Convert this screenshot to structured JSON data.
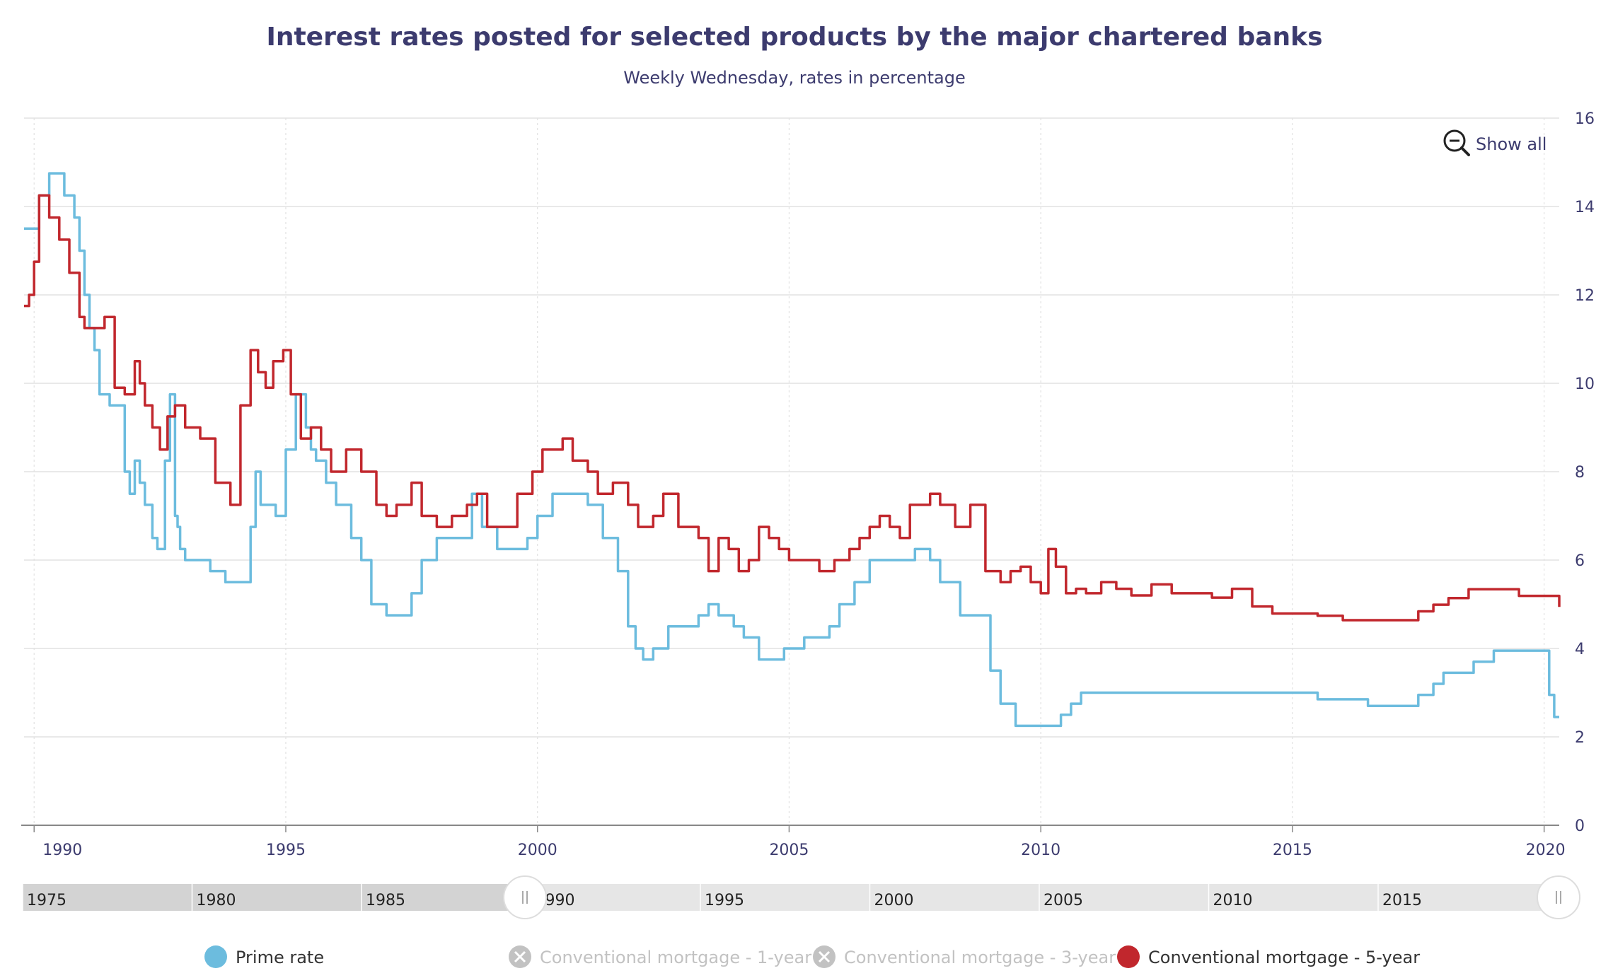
{
  "chart_data": {
    "type": "line",
    "title": "Interest rates posted for selected products by the major chartered banks",
    "subtitle": "Weekly Wednesday, rates in percentage",
    "xlabel": "",
    "ylabel": "",
    "ylim": [
      0,
      16
    ],
    "yticks": [
      "0",
      "2",
      "4",
      "6",
      "8",
      "10",
      "12",
      "14",
      "16"
    ],
    "xlim": [
      1989.8,
      2020.3
    ],
    "xticks": [
      "1990",
      "1995",
      "2000",
      "2005",
      "2010",
      "2015",
      "2020"
    ],
    "grid": true,
    "y_axis_position": "right",
    "legend_placement": "bottom",
    "series": [
      {
        "name": "Prime rate",
        "color": "#6cbcde",
        "visible": true,
        "x": [
          1989.8,
          1990.0,
          1990.1,
          1990.3,
          1990.6,
          1990.8,
          1990.9,
          1991.0,
          1991.1,
          1991.2,
          1991.3,
          1991.4,
          1991.5,
          1991.8,
          1991.9,
          1992.0,
          1992.1,
          1992.2,
          1992.35,
          1992.45,
          1992.6,
          1992.7,
          1992.8,
          1992.85,
          1992.9,
          1993.0,
          1993.2,
          1993.5,
          1993.8,
          1994.1,
          1994.3,
          1994.4,
          1994.5,
          1994.8,
          1995.0,
          1995.2,
          1995.4,
          1995.5,
          1995.6,
          1995.8,
          1996.0,
          1996.3,
          1996.5,
          1996.7,
          1997.0,
          1997.2,
          1997.4,
          1997.5,
          1997.7,
          1998.0,
          1998.5,
          1998.7,
          1998.9,
          1999.2,
          1999.5,
          1999.8,
          2000.0,
          2000.3,
          2000.6,
          2001.0,
          2001.3,
          2001.6,
          2001.8,
          2001.95,
          2002.1,
          2002.3,
          2002.6,
          2002.9,
          2003.2,
          2003.4,
          2003.6,
          2003.9,
          2004.1,
          2004.4,
          2004.7,
          2004.9,
          2005.3,
          2005.6,
          2005.8,
          2006.0,
          2006.3,
          2006.6,
          2006.9,
          2007.2,
          2007.5,
          2007.8,
          2008.0,
          2008.4,
          2008.8,
          2009.0,
          2009.2,
          2009.5,
          2009.8,
          2010.2,
          2010.4,
          2010.6,
          2010.8,
          2011.5,
          2012.5,
          2014.0,
          2015.0,
          2015.5,
          2016.0,
          2016.5,
          2017.0,
          2017.5,
          2017.8,
          2018.0,
          2018.3,
          2018.6,
          2019.0,
          2019.5,
          2020.0,
          2020.1,
          2020.2,
          2020.3
        ],
        "y": [
          13.5,
          13.5,
          14.25,
          14.75,
          14.25,
          13.75,
          13.0,
          12.0,
          11.25,
          10.75,
          9.75,
          9.75,
          9.5,
          8.0,
          7.5,
          8.25,
          7.75,
          7.25,
          6.5,
          6.25,
          8.25,
          9.75,
          7.0,
          6.75,
          6.25,
          6.0,
          6.0,
          5.75,
          5.5,
          5.5,
          6.75,
          8.0,
          7.25,
          7.0,
          8.5,
          9.75,
          9.0,
          8.5,
          8.25,
          7.75,
          7.25,
          6.5,
          6.0,
          5.0,
          4.75,
          4.75,
          4.75,
          5.25,
          6.0,
          6.5,
          6.5,
          7.5,
          6.75,
          6.25,
          6.25,
          6.5,
          7.0,
          7.5,
          7.5,
          7.25,
          6.5,
          5.75,
          4.5,
          4.0,
          3.75,
          4.0,
          4.5,
          4.5,
          4.75,
          5.0,
          4.75,
          4.5,
          4.25,
          3.75,
          3.75,
          4.0,
          4.25,
          4.25,
          4.5,
          5.0,
          5.5,
          6.0,
          6.0,
          6.0,
          6.25,
          6.0,
          5.5,
          4.75,
          4.75,
          3.5,
          2.75,
          2.25,
          2.25,
          2.25,
          2.5,
          2.75,
          3.0,
          3.0,
          3.0,
          3.0,
          3.0,
          2.85,
          2.85,
          2.7,
          2.7,
          2.95,
          3.2,
          3.45,
          3.45,
          3.7,
          3.95,
          3.95,
          3.95,
          2.95,
          2.45,
          2.45
        ]
      },
      {
        "name": "Conventional mortgage - 1-year",
        "color": "#cccccc",
        "visible": false,
        "x": [],
        "y": []
      },
      {
        "name": "Conventional mortgage - 3-year",
        "color": "#cccccc",
        "visible": false,
        "x": [],
        "y": []
      },
      {
        "name": "Conventional mortgage - 5-year",
        "color": "#c1272d",
        "visible": true,
        "x": [
          1989.8,
          1989.9,
          1990.0,
          1990.1,
          1990.2,
          1990.3,
          1990.5,
          1990.7,
          1990.9,
          1991.0,
          1991.2,
          1991.4,
          1991.6,
          1991.8,
          1992.0,
          1992.1,
          1992.2,
          1992.35,
          1992.5,
          1992.65,
          1992.8,
          1993.0,
          1993.3,
          1993.6,
          1993.9,
          1994.1,
          1994.3,
          1994.45,
          1994.6,
          1994.75,
          1994.95,
          1995.1,
          1995.3,
          1995.5,
          1995.7,
          1995.9,
          1996.2,
          1996.5,
          1996.8,
          1997.0,
          1997.2,
          1997.5,
          1997.7,
          1998.0,
          1998.3,
          1998.6,
          1998.8,
          1999.0,
          1999.3,
          1999.6,
          1999.9,
          2000.1,
          2000.3,
          2000.5,
          2000.7,
          2001.0,
          2001.2,
          2001.5,
          2001.8,
          2002.0,
          2002.3,
          2002.5,
          2002.8,
          2003.0,
          2003.2,
          2003.4,
          2003.6,
          2003.8,
          2004.0,
          2004.2,
          2004.4,
          2004.6,
          2004.8,
          2005.0,
          2005.3,
          2005.6,
          2005.9,
          2006.2,
          2006.4,
          2006.6,
          2006.8,
          2007.0,
          2007.2,
          2007.4,
          2007.6,
          2007.8,
          2008.0,
          2008.3,
          2008.6,
          2008.9,
          2009.2,
          2009.4,
          2009.6,
          2009.8,
          2010.0,
          2010.15,
          2010.3,
          2010.5,
          2010.7,
          2010.9,
          2011.2,
          2011.5,
          2011.8,
          2012.2,
          2012.6,
          2013.0,
          2013.4,
          2013.8,
          2014.2,
          2014.6,
          2015.0,
          2015.5,
          2016.0,
          2016.5,
          2017.0,
          2017.5,
          2017.8,
          2018.1,
          2018.5,
          2019.0,
          2019.5,
          2020.0,
          2020.3
        ],
        "y": [
          11.75,
          12.0,
          12.75,
          14.25,
          14.25,
          13.75,
          13.25,
          12.5,
          11.5,
          11.25,
          11.25,
          11.5,
          9.9,
          9.75,
          10.5,
          10.0,
          9.5,
          9.0,
          8.5,
          9.25,
          9.5,
          9.0,
          8.75,
          7.75,
          7.25,
          9.5,
          10.75,
          10.25,
          9.9,
          10.5,
          10.75,
          9.75,
          8.75,
          9.0,
          8.5,
          8.0,
          8.5,
          8.0,
          7.25,
          7.0,
          7.25,
          7.75,
          7.0,
          6.75,
          7.0,
          7.25,
          7.5,
          6.75,
          6.75,
          7.5,
          8.0,
          8.5,
          8.5,
          8.75,
          8.25,
          8.0,
          7.5,
          7.75,
          7.25,
          6.75,
          7.0,
          7.5,
          6.75,
          6.75,
          6.5,
          5.75,
          6.5,
          6.25,
          5.75,
          6.0,
          6.75,
          6.5,
          6.25,
          6.0,
          6.0,
          5.75,
          6.0,
          6.25,
          6.5,
          6.75,
          7.0,
          6.75,
          6.5,
          7.25,
          7.25,
          7.5,
          7.25,
          6.75,
          7.25,
          5.75,
          5.5,
          5.75,
          5.85,
          5.5,
          5.25,
          6.25,
          5.85,
          5.25,
          5.35,
          5.25,
          5.5,
          5.35,
          5.2,
          5.45,
          5.25,
          5.25,
          5.15,
          5.35,
          4.95,
          4.79,
          4.79,
          4.74,
          4.64,
          4.64,
          4.64,
          4.84,
          4.99,
          5.14,
          5.34,
          5.34,
          5.19,
          5.19,
          4.94
        ]
      }
    ],
    "navigator": {
      "labels": [
        "1975",
        "1980",
        "1985",
        "1990",
        "1995",
        "2000",
        "2005",
        "2010",
        "2015"
      ]
    }
  },
  "ui": {
    "show_all_label": "Show all",
    "colors": {
      "title": "#3c3b6e",
      "grid": "#e2e2e2",
      "axis": "#888888",
      "legend_hidden": "#c2c2c2",
      "legend_text": "#333333",
      "navigator_bg": "#e6e6e6",
      "navigator_masked": "#d3d3d3"
    }
  }
}
